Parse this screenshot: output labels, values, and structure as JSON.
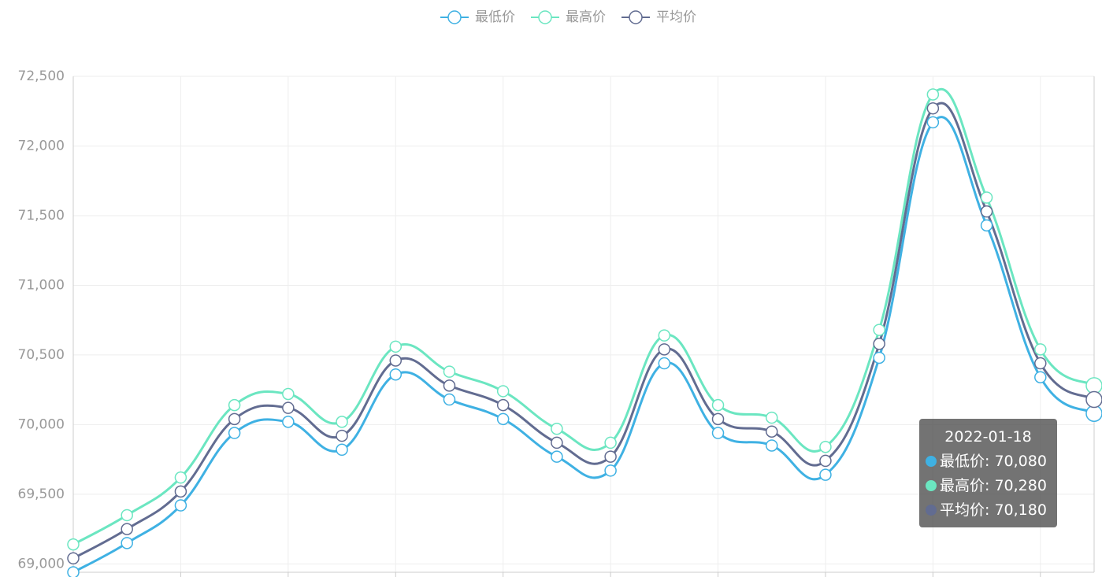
{
  "chart_data": {
    "type": "line",
    "smooth": true,
    "grid": true,
    "categories": [
      null,
      null,
      null,
      null,
      null,
      null,
      null,
      null,
      null,
      null,
      null,
      null,
      null,
      null,
      null,
      null,
      null,
      null,
      null,
      null
    ],
    "series": [
      {
        "name": "最低价",
        "color": "#3fb1e3",
        "values": [
          68940,
          69150,
          69420,
          69940,
          70020,
          69820,
          70360,
          70180,
          70040,
          69770,
          69670,
          70440,
          69940,
          69850,
          69640,
          70480,
          72170,
          71430,
          70340,
          70080
        ]
      },
      {
        "name": "最高价",
        "color": "#6be6c1",
        "values": [
          69140,
          69350,
          69620,
          70140,
          70220,
          70020,
          70560,
          70380,
          70240,
          69970,
          69870,
          70640,
          70140,
          70050,
          69840,
          70680,
          72370,
          71630,
          70540,
          70280
        ]
      },
      {
        "name": "平均价",
        "color": "#626c91",
        "values": [
          69040,
          69250,
          69520,
          70040,
          70120,
          69920,
          70460,
          70280,
          70140,
          69870,
          69770,
          70540,
          70040,
          69950,
          69740,
          70580,
          72270,
          71530,
          70440,
          70180
        ]
      }
    ],
    "ylim": [
      68940,
      72500
    ],
    "yticks": [
      {
        "value": 69000,
        "label": "69,000"
      },
      {
        "value": 69500,
        "label": "69,500"
      },
      {
        "value": 70000,
        "label": "70,000"
      },
      {
        "value": 70500,
        "label": "70,500"
      },
      {
        "value": 71000,
        "label": "71,000"
      },
      {
        "value": 71500,
        "label": "71,500"
      },
      {
        "value": 72000,
        "label": "72,000"
      },
      {
        "value": 72500,
        "label": "72,500"
      }
    ],
    "tooltip": {
      "title": "2022-01-18",
      "rows": [
        "最低价: 70,080",
        "最高价: 70,280",
        "平均价: 70,180"
      ]
    }
  }
}
